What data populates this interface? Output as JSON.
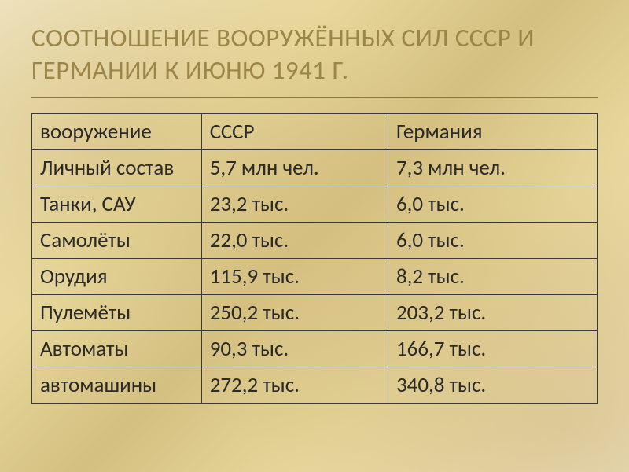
{
  "title": "СООТНОШЕНИЕ ВООРУЖЁННЫХ СИЛ СССР И ГЕРМАНИИ К ИЮНЮ 1941 Г.",
  "table": {
    "type": "table",
    "columns": [
      "вооружение",
      "СССР",
      "Германия"
    ],
    "rows": [
      [
        "Личный состав",
        "5,7 млн чел.",
        "7,3 млн чел."
      ],
      [
        "Танки, САУ",
        "23,2 тыс.",
        "6,0 тыс."
      ],
      [
        "Самолёты",
        "22,0 тыс.",
        "6,0 тыс."
      ],
      [
        "Орудия",
        "115,9 тыс.",
        "8,2 тыс."
      ],
      [
        "Пулемёты",
        "250,2 тыс.",
        "203,2 тыс."
      ],
      [
        "Автоматы",
        "90,3 тыс.",
        "166,7 тыс."
      ],
      [
        "автомашины",
        "272,2 тыс.",
        "340,8 тыс."
      ]
    ],
    "column_widths_percent": [
      30,
      33,
      37
    ],
    "border_color": "#3a3a3a",
    "cell_fontsize": 27,
    "text_color": "#2a2a2a"
  },
  "styling": {
    "background_gradient": [
      "#f0e4c0",
      "#e8d89c",
      "#d4c080"
    ],
    "title_color": "#9b8648",
    "title_fontsize": 33,
    "underline_color": "#8c7a42",
    "font_family": "Calibri"
  }
}
